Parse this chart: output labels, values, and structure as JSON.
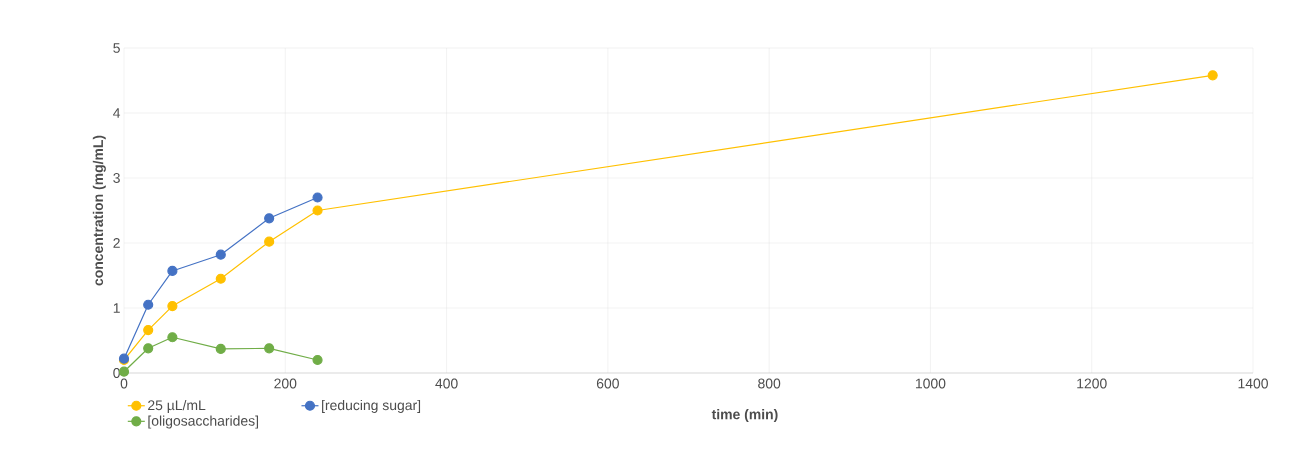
{
  "chart_data": {
    "type": "line",
    "xlabel": "time (min)",
    "ylabel": "concentration (mg/mL)",
    "xlim": [
      0,
      1400
    ],
    "xticks": [
      0,
      200,
      400,
      600,
      800,
      1000,
      1200,
      1400
    ],
    "ylim": [
      0,
      5
    ],
    "yticks": [
      0,
      1,
      2,
      3,
      4,
      5
    ],
    "grid": true,
    "legend": "bottom",
    "marker": "circle",
    "line_style": "solid",
    "series": [
      {
        "name": "25 µL/mL",
        "color": "#ffc000",
        "x": [
          0,
          30,
          60,
          120,
          180,
          240,
          1350
        ],
        "values": [
          0.2,
          0.66,
          1.03,
          1.45,
          2.02,
          2.5,
          4.58
        ]
      },
      {
        "name": "[reducing sugar]",
        "color": "#4472c4",
        "x": [
          0,
          30,
          60,
          120,
          180,
          240
        ],
        "values": [
          0.22,
          1.05,
          1.57,
          1.82,
          2.38,
          2.7
        ]
      },
      {
        "name": "[oligosaccharides]",
        "color": "#70ad47",
        "x": [
          0,
          30,
          60,
          120,
          180,
          240
        ],
        "values": [
          0.02,
          0.38,
          0.55,
          0.37,
          0.38,
          0.2
        ]
      }
    ]
  }
}
